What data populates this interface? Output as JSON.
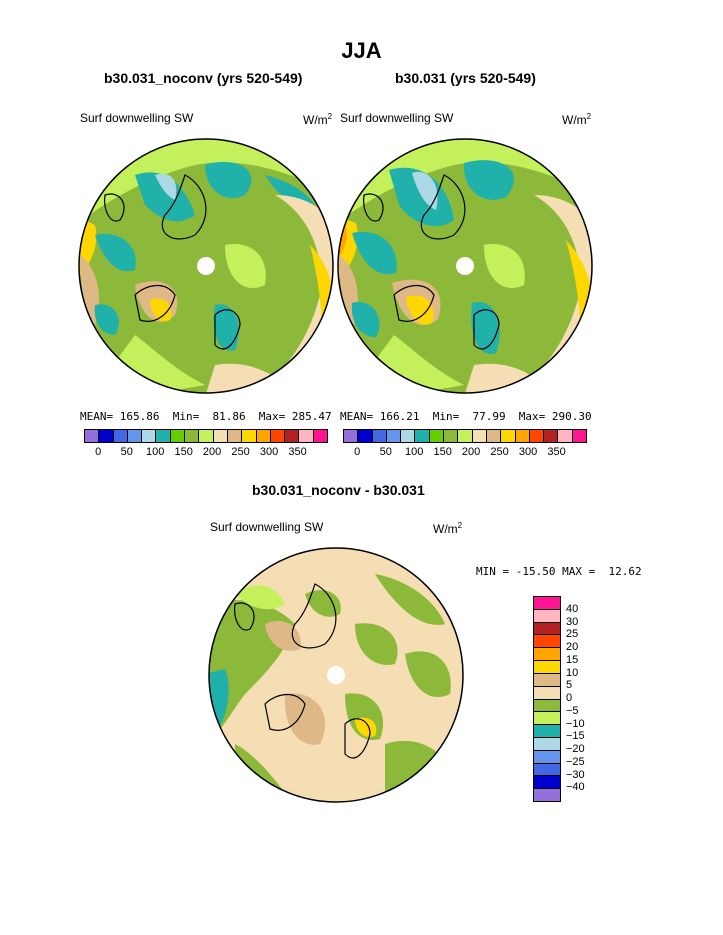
{
  "title": "JJA",
  "panels": [
    {
      "subtitle": "b30.031_noconv (yrs 520-549)",
      "left_label": "Surf downwelling SW",
      "units_base": "W/m",
      "units_sup": "2",
      "stats": "MEAN= 165.86  Min=  81.86  Max= 285.47"
    },
    {
      "subtitle": "b30.031 (yrs 520-549)",
      "left_label": "Surf downwelling SW",
      "units_base": "W/m",
      "units_sup": "2",
      "stats": "MEAN= 166.21  Min=  77.99  Max= 290.30"
    }
  ],
  "diff_panel": {
    "subtitle": "b30.031_noconv - b30.031",
    "left_label": "Surf downwelling SW",
    "units_base": "W/m",
    "units_sup": "2",
    "stats": "MIN = -15.50 MAX =  12.62"
  },
  "top_colorbar": {
    "colors": [
      "#9370db",
      "#0000cd",
      "#4169e1",
      "#6495ed",
      "#add8e6",
      "#20b2aa",
      "#66cd00",
      "#8db93a",
      "#c3f05b",
      "#f5deb3",
      "#deb887",
      "#ffd700",
      "#ffa500",
      "#ff4500",
      "#b22222",
      "#ffb6c1",
      "#ff1493"
    ],
    "tick_labels": [
      "0",
      "50",
      "100",
      "150",
      "200",
      "250",
      "300",
      "350"
    ]
  },
  "diff_colorbar": {
    "colors_top_to_bottom": [
      "#ff1493",
      "#ffb6c1",
      "#b22222",
      "#ff4500",
      "#ffa500",
      "#ffd700",
      "#deb887",
      "#f5deb3",
      "#8db93a",
      "#c3f05b",
      "#20b2aa",
      "#add8e6",
      "#6495ed",
      "#4169e1",
      "#0000cd",
      "#9370db"
    ],
    "tick_labels": [
      "40",
      "30",
      "25",
      "20",
      "15",
      "10",
      "5",
      "0",
      "−5",
      "−10",
      "−15",
      "−20",
      "−25",
      "−30",
      "−40"
    ]
  }
}
